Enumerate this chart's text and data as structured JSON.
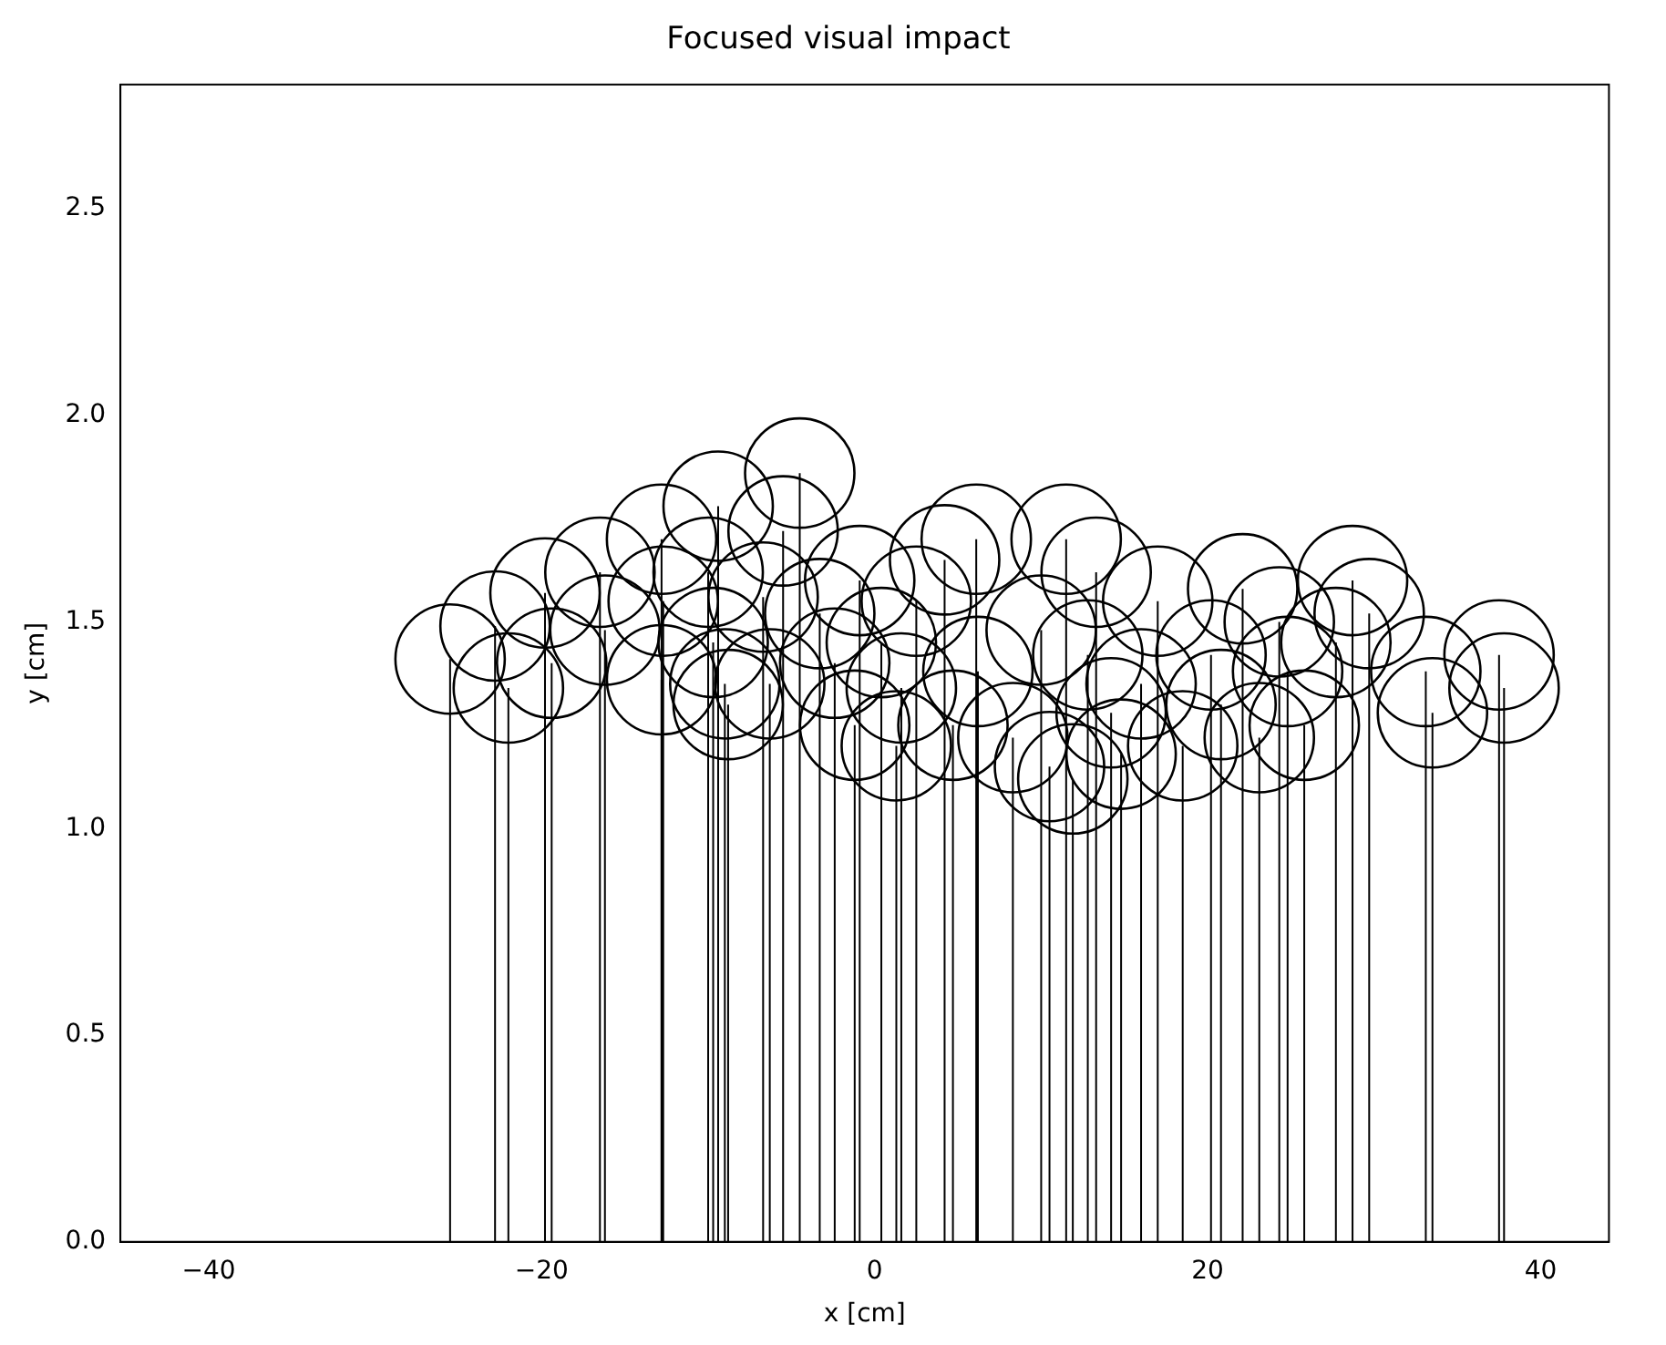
{
  "chart_data": {
    "type": "lollipop",
    "title": "Focused visual impact",
    "xlabel": "x [cm]",
    "ylabel": "y [cm]",
    "x": [
      -25.5,
      -22.8,
      -22.0,
      -19.8,
      -19.4,
      -16.5,
      -16.2,
      -12.8,
      -12.8,
      -12.7,
      -10.0,
      -9.7,
      -9.4,
      -9.0,
      -8.8,
      -6.7,
      -6.3,
      -5.5,
      -4.5,
      -3.3,
      -2.4,
      -1.2,
      -0.9,
      0.4,
      1.3,
      1.6,
      2.5,
      4.2,
      4.7,
      6.1,
      6.2,
      8.3,
      10.0,
      10.5,
      11.5,
      11.9,
      12.8,
      13.3,
      14.2,
      14.8,
      16.0,
      17.0,
      18.5,
      20.2,
      20.8,
      22.1,
      23.1,
      24.3,
      24.8,
      25.8,
      27.7,
      28.7,
      29.7,
      33.1,
      33.5,
      37.5,
      37.8
    ],
    "values": [
      1.41,
      1.49,
      1.34,
      1.57,
      1.4,
      1.62,
      1.48,
      1.7,
      1.36,
      1.55,
      1.62,
      1.45,
      1.78,
      1.35,
      1.3,
      1.56,
      1.35,
      1.72,
      1.86,
      1.52,
      1.4,
      1.25,
      1.6,
      1.45,
      1.2,
      1.34,
      1.55,
      1.65,
      1.25,
      1.7,
      1.38,
      1.22,
      1.48,
      1.15,
      1.7,
      1.12,
      1.42,
      1.62,
      1.28,
      1.18,
      1.35,
      1.55,
      1.2,
      1.42,
      1.3,
      1.58,
      1.22,
      1.5,
      1.38,
      1.25,
      1.45,
      1.6,
      1.52,
      1.38,
      1.28,
      1.42,
      1.34
    ],
    "color": "#000000",
    "marker": "circle",
    "xlim": [
      -45.3,
      44.1
    ],
    "xticks": [
      {
        "value": -40,
        "label": "−40"
      },
      {
        "value": -20,
        "label": "−20"
      },
      0,
      20,
      40
    ],
    "ylim": [
      0,
      2.8
    ],
    "yticks": [
      {
        "value": 0,
        "label": "0.0"
      },
      {
        "value": 0.5,
        "label": "0.5"
      },
      {
        "value": 1,
        "label": "1.0"
      },
      {
        "value": 1.5,
        "label": "1.5"
      },
      {
        "value": 2,
        "label": "2.0"
      },
      {
        "value": 2.5,
        "label": "2.5"
      }
    ],
    "legend": false
  }
}
